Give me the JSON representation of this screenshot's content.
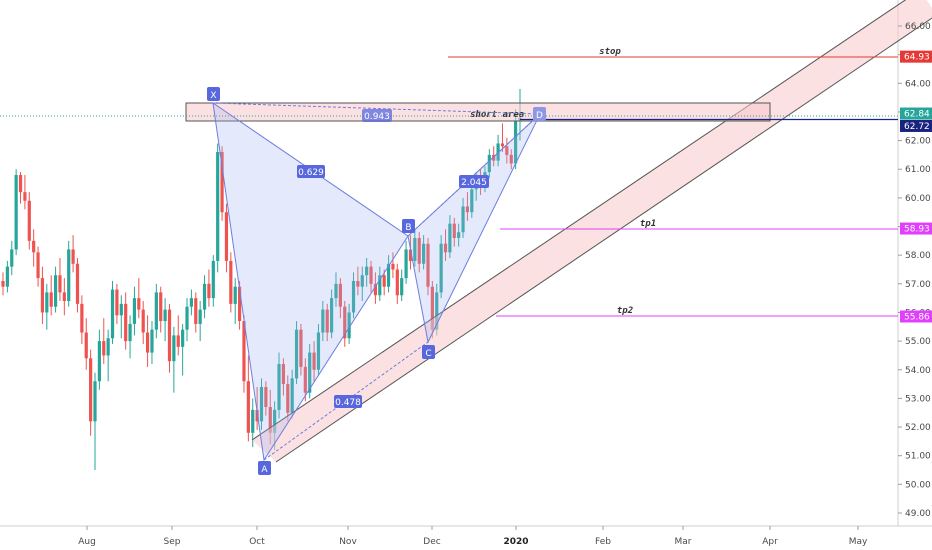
{
  "chart_data": {
    "type": "candlestick",
    "x_labels": [
      "Aug",
      "Sep",
      "Oct",
      "Nov",
      "Dec",
      "2020",
      "Feb",
      "Mar",
      "Apr",
      "May"
    ],
    "y_ticks": [
      49,
      50,
      51,
      52,
      53,
      54,
      55,
      56,
      57,
      58,
      59,
      60,
      61,
      62,
      63,
      64,
      65,
      66
    ],
    "y_tick_labels": [
      "49.00",
      "50.00",
      "51.00",
      "52.00",
      "53.00",
      "54.00",
      "55.00",
      "56.00",
      "57.00",
      "58.00",
      "59.00",
      "60.00",
      "61.00",
      "62.00",
      "63.00",
      "64.00",
      "65.00",
      "66.00"
    ],
    "ylim": [
      48.5,
      66.8
    ],
    "price_tags": [
      {
        "label": "64.93",
        "value": 64.93,
        "color": "#e53935"
      },
      {
        "label": "62.84",
        "value": 62.84,
        "color": "#26a69a"
      },
      {
        "label": "62.72",
        "value": 62.72,
        "color": "#1a237e"
      },
      {
        "label": "58.93",
        "value": 58.93,
        "color": "#e040fb"
      },
      {
        "label": "55.86",
        "value": 55.86,
        "color": "#e040fb"
      }
    ],
    "levels": [
      {
        "name": "stop",
        "value": 64.93,
        "color": "#e53935"
      },
      {
        "name": "tp1",
        "value": 58.93,
        "color": "#e040fb"
      },
      {
        "name": "tp2",
        "value": 55.86,
        "color": "#e040fb"
      }
    ],
    "pattern_points": [
      {
        "label": "X",
        "date": "2019-09-16",
        "value": 63.3
      },
      {
        "label": "A",
        "date": "2019-09-30",
        "value": 50.9
      },
      {
        "label": "B",
        "date": "2019-11-22",
        "value": 58.7
      },
      {
        "label": "C",
        "date": "2019-12-01",
        "value": 55.1
      },
      {
        "label": "D",
        "date": "2020-01-08",
        "value": 62.85
      }
    ],
    "ratios": [
      {
        "label": "0.629",
        "between": "XA-B"
      },
      {
        "label": "0.478",
        "between": "AB-C"
      },
      {
        "label": "2.045",
        "between": "BC-D"
      },
      {
        "label": "0.943",
        "between": "XA-D"
      }
    ],
    "short_area": {
      "label": "short area",
      "from": 62.6,
      "to": 63.4
    },
    "candles": [
      [
        57.1,
        57.4,
        56.6,
        56.9
      ],
      [
        56.9,
        57.8,
        56.7,
        57.6
      ],
      [
        57.6,
        58.5,
        57.3,
        58.2
      ],
      [
        58.2,
        61.0,
        58.0,
        60.8
      ],
      [
        60.8,
        60.9,
        59.8,
        60.2
      ],
      [
        60.2,
        60.8,
        59.6,
        59.9
      ],
      [
        59.9,
        60.2,
        58.2,
        58.5
      ],
      [
        58.5,
        58.9,
        57.6,
        58.1
      ],
      [
        58.1,
        58.3,
        56.9,
        57.2
      ],
      [
        57.2,
        57.6,
        55.6,
        56.0
      ],
      [
        56.0,
        57.0,
        55.4,
        56.7
      ],
      [
        56.7,
        57.3,
        55.9,
        56.2
      ],
      [
        56.2,
        57.6,
        56.0,
        57.3
      ],
      [
        57.3,
        57.9,
        56.4,
        56.7
      ],
      [
        56.7,
        57.2,
        55.9,
        56.4
      ],
      [
        56.4,
        58.5,
        56.2,
        58.2
      ],
      [
        58.2,
        58.7,
        57.4,
        57.7
      ],
      [
        57.7,
        57.9,
        56.0,
        56.3
      ],
      [
        56.3,
        56.6,
        54.9,
        55.3
      ],
      [
        55.3,
        55.8,
        54.0,
        54.4
      ],
      [
        54.4,
        54.7,
        51.7,
        52.2
      ],
      [
        52.2,
        53.9,
        50.5,
        53.6
      ],
      [
        53.6,
        55.4,
        53.3,
        55.0
      ],
      [
        55.0,
        55.8,
        54.2,
        54.5
      ],
      [
        54.5,
        55.4,
        53.6,
        55.1
      ],
      [
        55.1,
        57.1,
        54.9,
        56.8
      ],
      [
        56.8,
        57.0,
        55.6,
        55.9
      ],
      [
        55.9,
        56.6,
        55.1,
        56.3
      ],
      [
        56.3,
        56.7,
        54.7,
        55.0
      ],
      [
        55.0,
        55.9,
        54.4,
        55.6
      ],
      [
        55.6,
        56.9,
        55.2,
        56.5
      ],
      [
        56.5,
        57.2,
        55.8,
        56.1
      ],
      [
        56.1,
        56.4,
        54.9,
        55.3
      ],
      [
        55.3,
        55.9,
        54.1,
        54.6
      ],
      [
        54.6,
        55.7,
        54.2,
        55.4
      ],
      [
        55.4,
        57.0,
        55.1,
        56.7
      ],
      [
        56.7,
        56.9,
        55.3,
        55.7
      ],
      [
        55.7,
        56.5,
        55.0,
        56.1
      ],
      [
        56.1,
        56.3,
        53.9,
        54.3
      ],
      [
        54.3,
        55.5,
        53.2,
        55.2
      ],
      [
        55.2,
        55.9,
        54.5,
        54.8
      ],
      [
        54.8,
        55.6,
        53.8,
        55.4
      ],
      [
        55.4,
        56.5,
        55.0,
        56.2
      ],
      [
        56.2,
        56.8,
        55.9,
        56.5
      ],
      [
        56.5,
        56.7,
        55.3,
        55.6
      ],
      [
        55.6,
        56.4,
        55.0,
        56.1
      ],
      [
        56.1,
        57.3,
        55.8,
        57.0
      ],
      [
        57.0,
        57.5,
        56.2,
        56.5
      ],
      [
        56.5,
        58.0,
        56.2,
        57.8
      ],
      [
        57.8,
        61.9,
        57.4,
        61.6
      ],
      [
        61.6,
        61.8,
        59.2,
        59.5
      ],
      [
        59.5,
        59.8,
        57.4,
        57.8
      ],
      [
        57.8,
        58.1,
        56.0,
        56.3
      ],
      [
        56.3,
        57.2,
        55.6,
        56.9
      ],
      [
        56.9,
        57.1,
        55.4,
        55.7
      ],
      [
        55.7,
        55.9,
        53.2,
        53.6
      ],
      [
        53.6,
        54.5,
        51.5,
        51.8
      ],
      [
        51.8,
        53.0,
        51.3,
        52.6
      ],
      [
        52.6,
        53.4,
        51.9,
        52.2
      ],
      [
        52.2,
        53.7,
        51.9,
        53.4
      ],
      [
        53.4,
        53.6,
        52.4,
        52.7
      ],
      [
        52.7,
        53.3,
        51.4,
        51.8
      ],
      [
        51.8,
        52.9,
        51.2,
        52.6
      ],
      [
        52.6,
        54.6,
        52.3,
        54.2
      ],
      [
        54.2,
        54.4,
        53.1,
        53.5
      ],
      [
        53.5,
        53.8,
        52.2,
        52.5
      ],
      [
        52.5,
        54.0,
        52.3,
        53.7
      ],
      [
        53.7,
        55.7,
        53.5,
        55.4
      ],
      [
        55.4,
        55.6,
        53.8,
        54.1
      ],
      [
        54.1,
        54.4,
        52.9,
        53.2
      ],
      [
        53.2,
        54.9,
        53.0,
        54.6
      ],
      [
        54.6,
        55.0,
        53.6,
        54.0
      ],
      [
        54.0,
        55.6,
        53.8,
        55.3
      ],
      [
        55.3,
        56.4,
        55.0,
        56.1
      ],
      [
        56.1,
        56.3,
        55.0,
        55.3
      ],
      [
        55.3,
        56.8,
        55.1,
        56.5
      ],
      [
        56.5,
        57.4,
        56.2,
        57.0
      ],
      [
        57.0,
        57.2,
        55.8,
        56.2
      ],
      [
        56.2,
        56.4,
        54.8,
        55.1
      ],
      [
        55.1,
        56.3,
        54.9,
        56.0
      ],
      [
        56.0,
        57.4,
        55.8,
        57.1
      ],
      [
        57.1,
        57.6,
        56.6,
        56.9
      ],
      [
        56.9,
        57.6,
        56.4,
        57.3
      ],
      [
        57.3,
        57.9,
        56.9,
        57.6
      ],
      [
        57.6,
        57.8,
        56.7,
        57.0
      ],
      [
        57.0,
        57.4,
        56.3,
        56.6
      ],
      [
        56.6,
        57.6,
        56.4,
        57.3
      ],
      [
        57.3,
        57.5,
        56.6,
        56.9
      ],
      [
        56.9,
        58.0,
        56.7,
        57.7
      ],
      [
        57.7,
        58.1,
        57.2,
        57.5
      ],
      [
        57.5,
        57.7,
        56.3,
        56.6
      ],
      [
        56.6,
        57.5,
        56.4,
        57.2
      ],
      [
        57.2,
        58.5,
        57.0,
        58.2
      ],
      [
        58.2,
        58.7,
        57.5,
        57.8
      ],
      [
        57.8,
        58.9,
        57.6,
        58.6
      ],
      [
        58.6,
        58.8,
        57.4,
        57.7
      ],
      [
        57.7,
        58.7,
        57.5,
        58.4
      ],
      [
        58.4,
        58.6,
        56.6,
        56.9
      ],
      [
        56.9,
        57.1,
        55.1,
        55.4
      ],
      [
        55.4,
        57.0,
        55.2,
        56.7
      ],
      [
        56.7,
        58.7,
        56.5,
        58.4
      ],
      [
        58.4,
        58.9,
        57.8,
        58.1
      ],
      [
        58.1,
        59.4,
        57.9,
        59.1
      ],
      [
        59.1,
        59.3,
        58.3,
        58.6
      ],
      [
        58.6,
        59.1,
        58.3,
        58.8
      ],
      [
        58.8,
        60.0,
        58.6,
        59.7
      ],
      [
        59.7,
        60.2,
        59.2,
        59.5
      ],
      [
        59.5,
        60.6,
        59.3,
        60.3
      ],
      [
        60.3,
        60.9,
        59.9,
        60.6
      ],
      [
        60.6,
        61.0,
        60.1,
        60.4
      ],
      [
        60.4,
        61.1,
        60.2,
        60.9
      ],
      [
        60.9,
        61.7,
        60.7,
        61.5
      ],
      [
        61.5,
        61.8,
        61.1,
        61.3
      ],
      [
        61.3,
        62.2,
        61.1,
        61.9
      ],
      [
        61.9,
        62.6,
        61.6,
        61.8
      ],
      [
        61.8,
        62.1,
        61.2,
        61.5
      ],
      [
        61.5,
        61.7,
        61.0,
        61.2
      ],
      [
        61.2,
        63.1,
        61.0,
        62.7
      ],
      [
        62.7,
        63.8,
        62.0,
        62.8
      ]
    ]
  }
}
